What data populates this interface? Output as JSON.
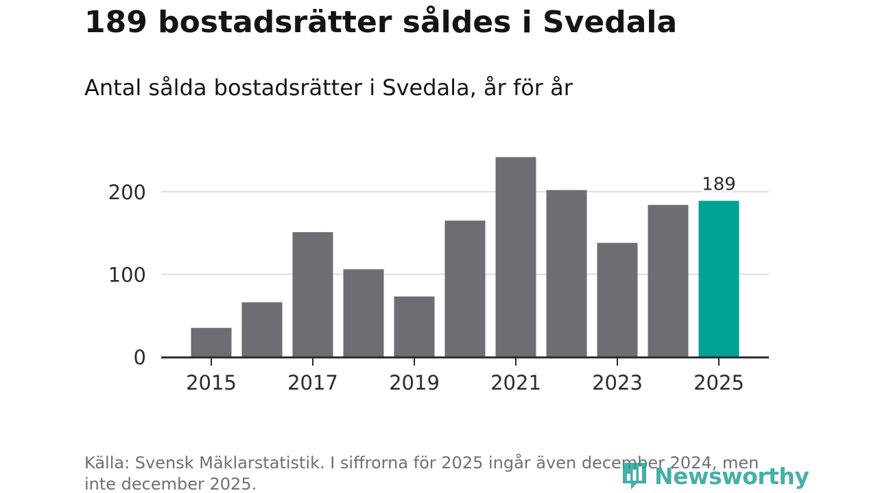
{
  "title": "189 bostadsrätter såldes i Svedala",
  "subtitle": "Antal sålda bostadsrätter i Svedala, år för år",
  "source": "Källa: Svensk Mäklarstatistik. I siffrorna för 2025 ingår även december 2024, men inte december 2025.",
  "logo": {
    "text": "Newsworthy",
    "icon": "bar-chart-icon"
  },
  "colors": {
    "bar": "#6e6d74",
    "highlight": "#00a296",
    "grid": "#dddddd",
    "axis": "#2b2b2b",
    "logo": "#1f9e96"
  },
  "chart_data": {
    "type": "bar",
    "title": "189 bostadsrätter såldes i Svedala",
    "subtitle": "Antal sålda bostadsrätter i Svedala, år för år",
    "xlabel": "",
    "ylabel": "",
    "categories": [
      "2015",
      "2016",
      "2017",
      "2018",
      "2019",
      "2020",
      "2021",
      "2022",
      "2023",
      "2024",
      "2025"
    ],
    "values": [
      35,
      66,
      151,
      106,
      73,
      165,
      242,
      202,
      138,
      184,
      189
    ],
    "highlight_index": 10,
    "x_tick_labels": [
      "2015",
      "2017",
      "2019",
      "2021",
      "2023",
      "2025"
    ],
    "y_ticks": [
      0,
      100,
      200
    ],
    "y_tick_labels": [
      "0",
      "100",
      "200"
    ],
    "ylim": [
      0,
      250
    ],
    "grid": true,
    "data_labels": [
      {
        "category": "2025",
        "text": "189"
      }
    ]
  }
}
